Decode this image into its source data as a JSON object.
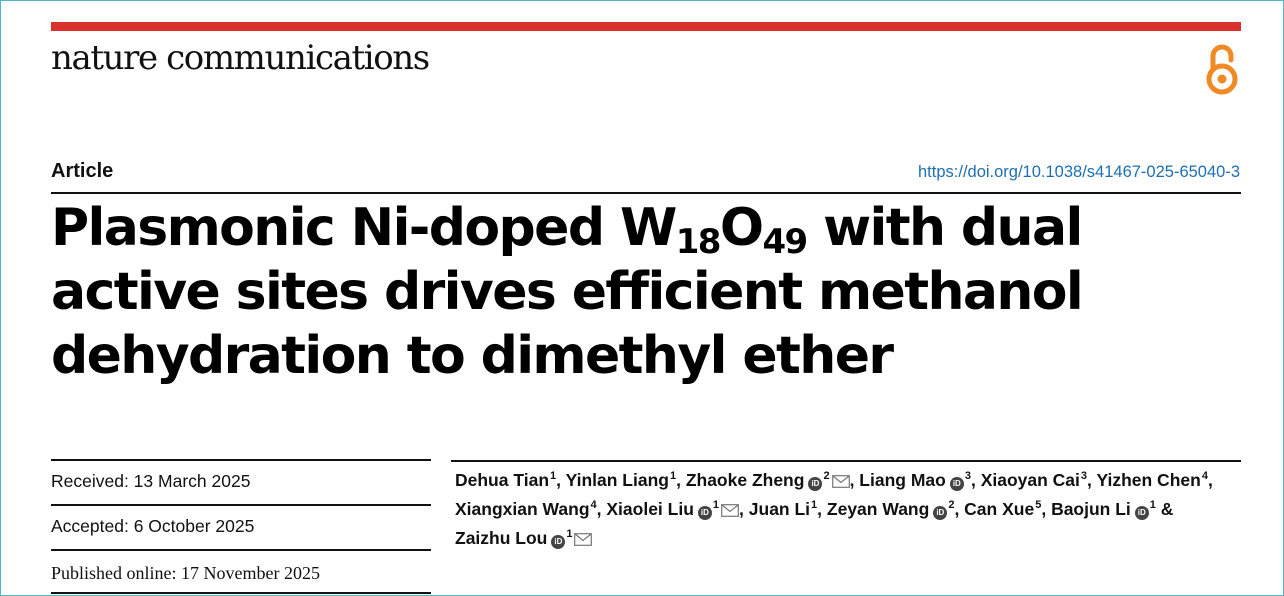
{
  "journal": {
    "name": "nature communications"
  },
  "header": {
    "article_type": "Article",
    "doi": "https://doi.org/10.1038/s41467-025-65040-3"
  },
  "title": {
    "part1": "Plasmonic Ni-doped W",
    "sub1": "18",
    "part2": "O",
    "sub2": "49",
    "part3": " with dual active sites drives efficient methanol dehydration to dimethyl ether"
  },
  "dates": {
    "received": "Received: 13 March 2025",
    "accepted": "Accepted: 6 October 2025",
    "published": "Published online: 17 November 2025"
  },
  "authors": [
    {
      "name": "Dehua Tian",
      "sup": "1",
      "orcid": false,
      "mail": false,
      "sep": ", "
    },
    {
      "name": "Yinlan Liang",
      "sup": "1",
      "orcid": false,
      "mail": false,
      "sep": ", "
    },
    {
      "name": "Zhaoke Zheng",
      "sup": "2",
      "orcid": true,
      "mail": true,
      "sep": ", "
    },
    {
      "name": "Liang Mao",
      "sup": "3",
      "orcid": true,
      "mail": false,
      "sep": ", "
    },
    {
      "name": "Xiaoyan Cai",
      "sup": "3",
      "orcid": false,
      "mail": false,
      "sep": ", "
    },
    {
      "name": "Yizhen Chen",
      "sup": "4",
      "orcid": false,
      "mail": false,
      "sep": ", "
    },
    {
      "name": "Xiangxian Wang",
      "sup": "4",
      "orcid": false,
      "mail": false,
      "sep": ", "
    },
    {
      "name": "Xiaolei Liu",
      "sup": "1",
      "orcid": true,
      "mail": true,
      "sep": ", "
    },
    {
      "name": "Juan Li",
      "sup": "1",
      "orcid": false,
      "mail": false,
      "sep": ", "
    },
    {
      "name": "Zeyan Wang",
      "sup": "2",
      "orcid": true,
      "mail": false,
      "sep": ", "
    },
    {
      "name": "Can Xue",
      "sup": "5",
      "orcid": false,
      "mail": false,
      "sep": ", "
    },
    {
      "name": "Baojun Li",
      "sup": "1",
      "orcid": true,
      "mail": false,
      "sep": " & "
    },
    {
      "name": "Zaizhu Lou",
      "sup": "1",
      "orcid": true,
      "mail": true,
      "sep": ""
    }
  ],
  "icons": {
    "open_access": "open-access-icon",
    "orcid": "orcid-icon",
    "mail": "mail-icon",
    "orcid_text": "iD"
  },
  "colors": {
    "brand_red": "#d9322c",
    "doi_link": "#1f6fb2",
    "open_access_orange": "#f08a24",
    "frame": "#4bb8d0"
  }
}
